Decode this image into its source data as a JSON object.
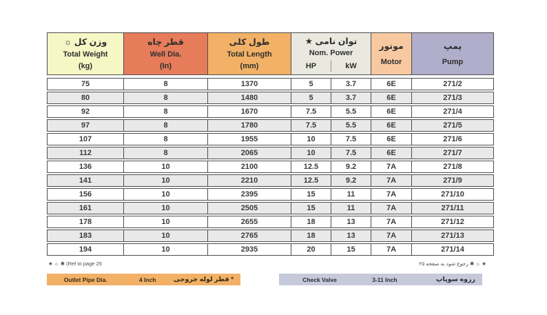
{
  "table": {
    "columns": [
      {
        "fa": "وزن کل ☼",
        "en": "Total Weight",
        "unit": "(kg)"
      },
      {
        "fa": "قطر چاه",
        "en": "Well Dia.",
        "unit": "(In)"
      },
      {
        "fa": "طول کلی",
        "en": "Total Length",
        "unit": "(mm)"
      },
      {
        "fa": "توان نامی ★",
        "en": "Nom. Power",
        "sub": [
          "HP",
          "kW"
        ]
      },
      {
        "fa": "موتور",
        "en": "Motor"
      },
      {
        "fa": "پمپ",
        "en": "Pump"
      }
    ],
    "rows": [
      [
        "75",
        "8",
        "1370",
        "5",
        "3.7",
        "6E",
        "271/2"
      ],
      [
        "80",
        "8",
        "1480",
        "5",
        "3.7",
        "6E",
        "271/3"
      ],
      [
        "92",
        "8",
        "1670",
        "7.5",
        "5.5",
        "6E",
        "271/4"
      ],
      [
        "97",
        "8",
        "1780",
        "7.5",
        "5.5",
        "6E",
        "271/5"
      ],
      [
        "107",
        "8",
        "1955",
        "10",
        "7.5",
        "6E",
        "271/6"
      ],
      [
        "112",
        "8",
        "2065",
        "10",
        "7.5",
        "6E",
        "271/7"
      ],
      [
        "136",
        "10",
        "2100",
        "12.5",
        "9.2",
        "7A",
        "271/8"
      ],
      [
        "141",
        "10",
        "2210",
        "12.5",
        "9.2",
        "7A",
        "271/9"
      ],
      [
        "156",
        "10",
        "2395",
        "15",
        "11",
        "7A",
        "271/10"
      ],
      [
        "161",
        "10",
        "2505",
        "15",
        "11",
        "7A",
        "271/11"
      ],
      [
        "178",
        "10",
        "2655",
        "18",
        "13",
        "7A",
        "271/12"
      ],
      [
        "183",
        "10",
        "2765",
        "18",
        "13",
        "7A",
        "271/13"
      ],
      [
        "194",
        "10",
        "2935",
        "20",
        "15",
        "7A",
        "271/14"
      ]
    ]
  },
  "footnotes": {
    "left": "★ ☼ ✱ (Ref to page 25",
    "right": "★ ☼ ✱ رجوع شود به صفحه ۲۵"
  },
  "bars": {
    "outlet": {
      "en": "Outlet Pipe Dia.",
      "value": "4 Inch",
      "fa": "* قطر لوله خروجی"
    },
    "check_valve": {
      "en": "Check Valve",
      "value": "3-11 Inch",
      "fa": "رزوه سوپاپ"
    }
  },
  "colors": {
    "header_weight": "#f7f6c5",
    "header_well_dia": "#e77c5b",
    "header_length": "#f2b166",
    "header_power": "#eae9e0",
    "header_motor": "#f8c9a1",
    "header_pump": "#b1aecb",
    "row_alt": "#e9e9e9",
    "border": "#4d4d4d",
    "bar_outlet": "#f2b166",
    "bar_valve": "#c6c9da"
  }
}
